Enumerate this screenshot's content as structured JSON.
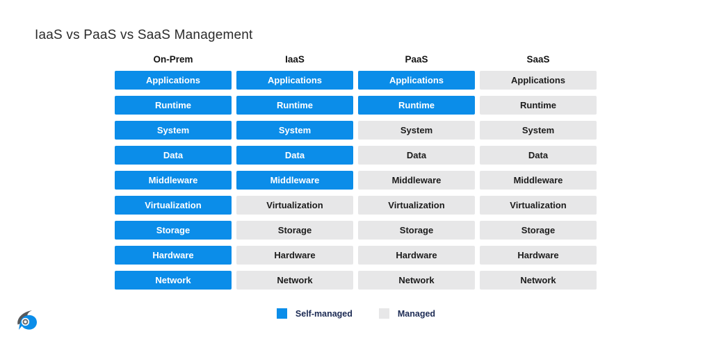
{
  "title": "IaaS vs PaaS vs SaaS Management",
  "colors": {
    "self_managed": "#0b8de9",
    "managed": "#e7e7e8",
    "cell_text_self": "#ffffff",
    "cell_text_managed": "#1c1c1c",
    "legend_text": "#1c2b54",
    "logo_gray": "#58595b",
    "logo_blue": "#0b8de9"
  },
  "columns": [
    {
      "label": "On-Prem",
      "cells": [
        {
          "label": "Applications",
          "state": "self"
        },
        {
          "label": "Runtime",
          "state": "self"
        },
        {
          "label": "System",
          "state": "self"
        },
        {
          "label": "Data",
          "state": "self"
        },
        {
          "label": "Middleware",
          "state": "self"
        },
        {
          "label": "Virtualization",
          "state": "self"
        },
        {
          "label": "Storage",
          "state": "self"
        },
        {
          "label": "Hardware",
          "state": "self"
        },
        {
          "label": "Network",
          "state": "self"
        }
      ]
    },
    {
      "label": "IaaS",
      "cells": [
        {
          "label": "Applications",
          "state": "self"
        },
        {
          "label": "Runtime",
          "state": "self"
        },
        {
          "label": "System",
          "state": "self"
        },
        {
          "label": "Data",
          "state": "self"
        },
        {
          "label": "Middleware",
          "state": "self"
        },
        {
          "label": "Virtualization",
          "state": "managed"
        },
        {
          "label": "Storage",
          "state": "managed"
        },
        {
          "label": "Hardware",
          "state": "managed"
        },
        {
          "label": "Network",
          "state": "managed"
        }
      ]
    },
    {
      "label": "PaaS",
      "cells": [
        {
          "label": "Applications",
          "state": "self"
        },
        {
          "label": "Runtime",
          "state": "self"
        },
        {
          "label": "System",
          "state": "managed"
        },
        {
          "label": "Data",
          "state": "managed"
        },
        {
          "label": "Middleware",
          "state": "managed"
        },
        {
          "label": "Virtualization",
          "state": "managed"
        },
        {
          "label": "Storage",
          "state": "managed"
        },
        {
          "label": "Hardware",
          "state": "managed"
        },
        {
          "label": "Network",
          "state": "managed"
        }
      ]
    },
    {
      "label": "SaaS",
      "cells": [
        {
          "label": "Applications",
          "state": "managed"
        },
        {
          "label": "Runtime",
          "state": "managed"
        },
        {
          "label": "System",
          "state": "managed"
        },
        {
          "label": "Data",
          "state": "managed"
        },
        {
          "label": "Middleware",
          "state": "managed"
        },
        {
          "label": "Virtualization",
          "state": "managed"
        },
        {
          "label": "Storage",
          "state": "managed"
        },
        {
          "label": "Hardware",
          "state": "managed"
        },
        {
          "label": "Network",
          "state": "managed"
        }
      ]
    }
  ],
  "legend": [
    {
      "label": "Self-managed",
      "state": "self"
    },
    {
      "label": "Managed",
      "state": "managed"
    }
  ]
}
